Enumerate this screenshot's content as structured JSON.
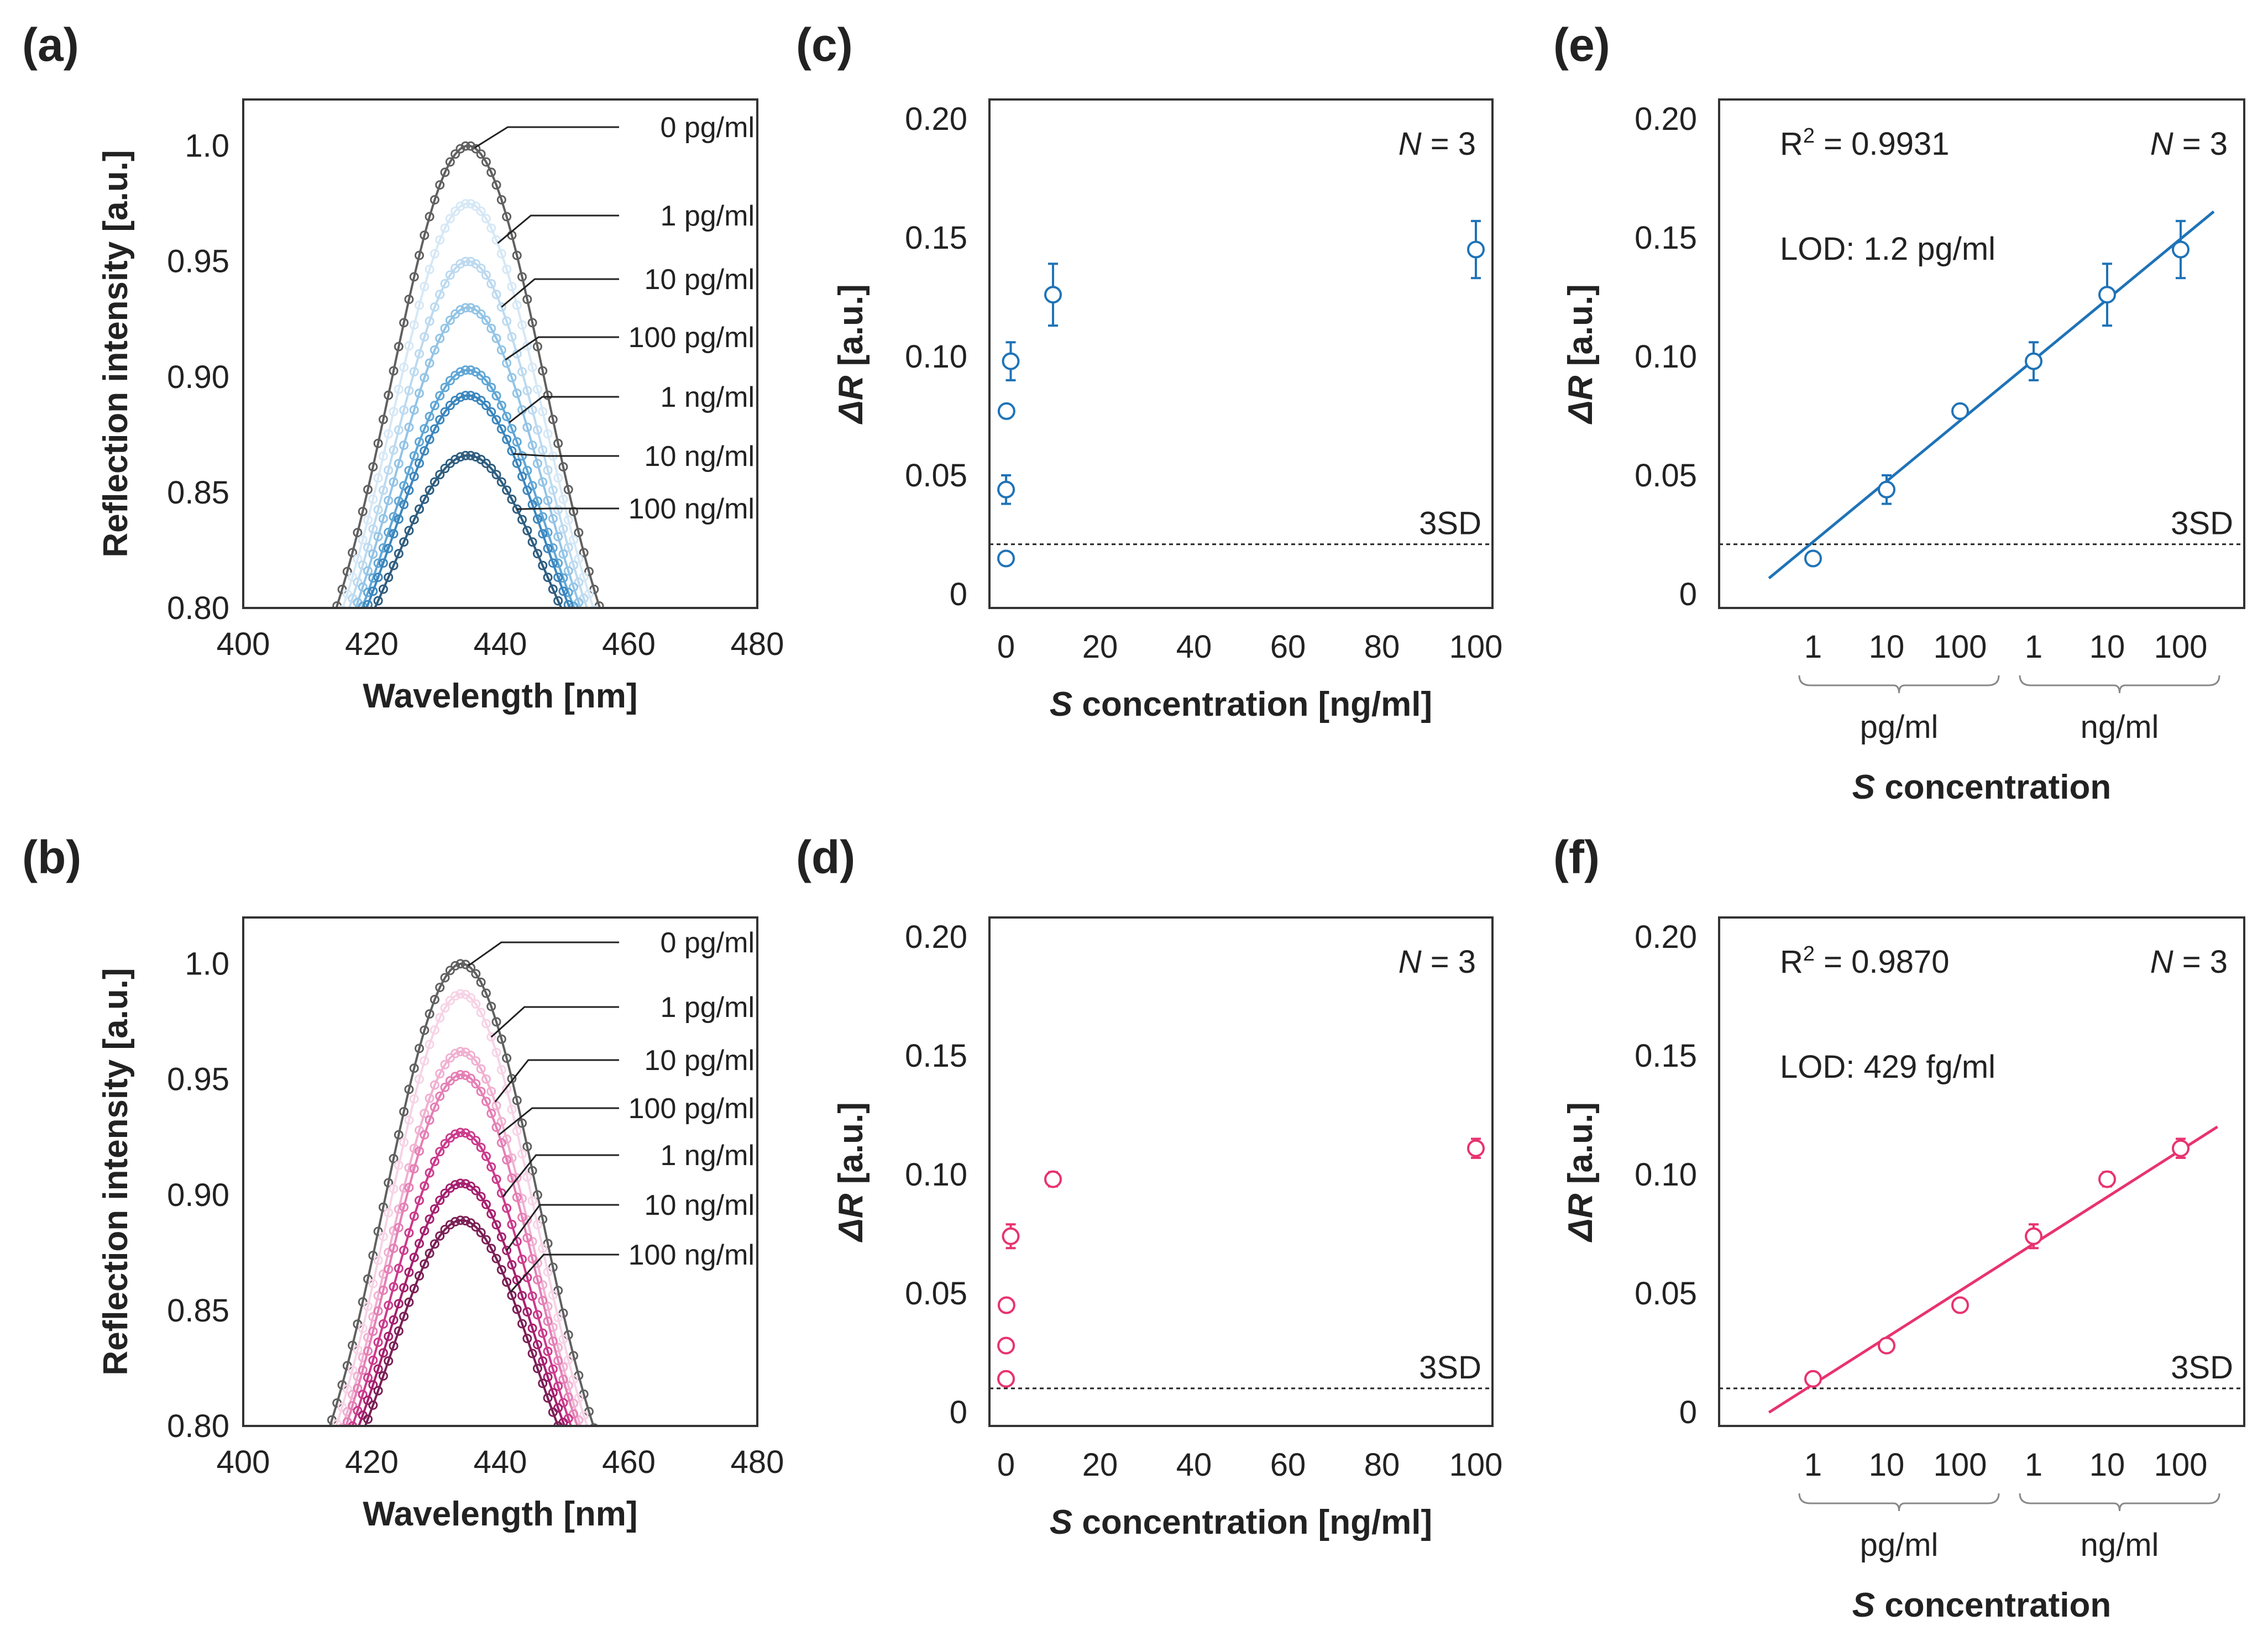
{
  "chart_data": [
    {
      "panel": "(a)",
      "type": "line",
      "xlabel": "Wavelength [nm]",
      "ylabel": "Reflection intensity [a.u.]",
      "xlim": [
        400,
        480
      ],
      "ylim": [
        0.8,
        1.02
      ],
      "xticks": [
        "400",
        "420",
        "440",
        "460",
        "480"
      ],
      "yticks": [
        "0.80",
        "0.85",
        "0.90",
        "0.95",
        "1.0"
      ],
      "series": [
        {
          "name": "0 pg/ml",
          "peak_x": 435,
          "peak_y": 1.0,
          "halfwidth": 20.5,
          "color": "#606060"
        },
        {
          "name": "1 pg/ml",
          "peak_x": 435,
          "peak_y": 0.975,
          "halfwidth": 19.5,
          "color": "#d6e8f6"
        },
        {
          "name": "10 pg/ml",
          "peak_x": 435,
          "peak_y": 0.95,
          "halfwidth": 18.5,
          "color": "#bcdaf0"
        },
        {
          "name": "100 pg/ml",
          "peak_x": 435,
          "peak_y": 0.93,
          "halfwidth": 17.5,
          "color": "#93c4e6"
        },
        {
          "name": "1 ng/ml",
          "peak_x": 435,
          "peak_y": 0.903,
          "halfwidth": 16.5,
          "color": "#5fa6d6"
        },
        {
          "name": "10 ng/ml",
          "peak_x": 435,
          "peak_y": 0.892,
          "halfwidth": 15.8,
          "color": "#3b86bd"
        },
        {
          "name": "100 ng/ml",
          "peak_x": 435,
          "peak_y": 0.866,
          "halfwidth": 14.5,
          "color": "#2e5d7f"
        }
      ]
    },
    {
      "panel": "(b)",
      "type": "line",
      "xlabel": "Wavelength [nm]",
      "ylabel": "Reflection intensity [a.u.]",
      "xlim": [
        400,
        480
      ],
      "ylim": [
        0.8,
        1.02
      ],
      "xticks": [
        "400",
        "420",
        "440",
        "460",
        "480"
      ],
      "yticks": [
        "0.80",
        "0.85",
        "0.90",
        "0.95",
        "1.0"
      ],
      "series": [
        {
          "name": "0 pg/ml",
          "peak_x": 434,
          "peak_y": 1.0,
          "halfwidth": 20.5,
          "color": "#606060"
        },
        {
          "name": "1 pg/ml",
          "peak_x": 434,
          "peak_y": 0.987,
          "halfwidth": 19.5,
          "color": "#f7d3e6"
        },
        {
          "name": "10 pg/ml",
          "peak_x": 434,
          "peak_y": 0.962,
          "halfwidth": 18.5,
          "color": "#f0b0d1"
        },
        {
          "name": "100 pg/ml",
          "peak_x": 434,
          "peak_y": 0.952,
          "halfwidth": 18.0,
          "color": "#e57fb5"
        },
        {
          "name": "1 ng/ml",
          "peak_x": 434,
          "peak_y": 0.927,
          "halfwidth": 17.0,
          "color": "#cc3a8c"
        },
        {
          "name": "10 ng/ml",
          "peak_x": 434,
          "peak_y": 0.905,
          "halfwidth": 16.0,
          "color": "#a51f6e"
        },
        {
          "name": "100 ng/ml",
          "peak_x": 434,
          "peak_y": 0.889,
          "halfwidth": 15.0,
          "color": "#7a1f55"
        }
      ]
    },
    {
      "panel": "(c)",
      "type": "scatter",
      "xlabel_italic": "S",
      "xlabel_rest": " concentration [ng/ml]",
      "ylabel_italic": "ΔR",
      "ylabel_rest": " [a.u.]",
      "xlim": [
        0,
        100
      ],
      "ylim": [
        0,
        0.2
      ],
      "xticks": [
        "0",
        "20",
        "40",
        "60",
        "80",
        "100"
      ],
      "yticks": [
        "0",
        "0.05",
        "0.10",
        "0.15",
        "0.20"
      ],
      "color": "#1f73b7",
      "n_label": "N",
      "n_value": " = 3",
      "threshold": {
        "label": "3SD",
        "y": 0.021
      },
      "x": [
        0.001,
        0.01,
        0.1,
        1,
        10,
        100
      ],
      "y": [
        0.015,
        0.044,
        0.077,
        0.098,
        0.126,
        0.145
      ],
      "err": [
        0.002,
        0.006,
        0.002,
        0.008,
        0.013,
        0.012
      ]
    },
    {
      "panel": "(d)",
      "type": "scatter",
      "xlabel_italic": "S",
      "xlabel_rest": " concentration [ng/ml]",
      "ylabel_italic": "ΔR",
      "ylabel_rest": " [a.u.]",
      "xlim": [
        0,
        100
      ],
      "ylim": [
        0,
        0.2
      ],
      "xticks": [
        "0",
        "20",
        "40",
        "60",
        "80",
        "100"
      ],
      "yticks": [
        "0",
        "0.05",
        "0.10",
        "0.15",
        "0.20"
      ],
      "color": "#e8336f",
      "n_label": "N",
      "n_value": " = 3",
      "threshold": {
        "label": "3SD",
        "y": 0.01
      },
      "x": [
        0.001,
        0.01,
        0.1,
        1,
        10,
        100
      ],
      "y": [
        0.014,
        0.028,
        0.045,
        0.074,
        0.098,
        0.111
      ],
      "err": [
        0.002,
        0.002,
        0.002,
        0.005,
        0.003,
        0.004
      ]
    },
    {
      "panel": "(e)",
      "type": "scatter",
      "ylabel_italic": "ΔR",
      "ylabel_rest": " [a.u.]",
      "xlabel_italic": "S",
      "xlabel_rest": " concentration",
      "ylim": [
        0,
        0.2
      ],
      "yticks": [
        "0",
        "0.05",
        "0.10",
        "0.15",
        "0.20"
      ],
      "xticks": [
        "1",
        "10",
        "100",
        "1",
        "10",
        "100"
      ],
      "groups": [
        "pg/ml",
        "ng/ml"
      ],
      "color": "#1f73b7",
      "r2_prefix": "R",
      "r2_sup": "2",
      "r2_value": " = 0.9931",
      "lod": "LOD: 1.2 pg/ml",
      "n_label": "N",
      "n_value": " = 3",
      "threshold": {
        "label": "3SD",
        "y": 0.021
      },
      "x_index": [
        0,
        1,
        2,
        3,
        4,
        5
      ],
      "y": [
        0.015,
        0.044,
        0.077,
        0.098,
        0.126,
        0.145
      ],
      "err": [
        0.002,
        0.006,
        0.002,
        0.008,
        0.013,
        0.012
      ],
      "fit_range": [
        -0.6,
        5.45
      ],
      "fit": {
        "slope": 0.0255,
        "intercept": 0.022
      }
    },
    {
      "panel": "(f)",
      "type": "scatter",
      "ylabel_italic": "ΔR",
      "ylabel_rest": " [a.u.]",
      "xlabel_italic": "S",
      "xlabel_rest": " concentration",
      "ylim": [
        0,
        0.2
      ],
      "yticks": [
        "0",
        "0.05",
        "0.10",
        "0.15",
        "0.20"
      ],
      "xticks": [
        "1",
        "10",
        "100",
        "1",
        "10",
        "100"
      ],
      "groups": [
        "pg/ml",
        "ng/ml"
      ],
      "color": "#e8336f",
      "r2_prefix": "R",
      "r2_sup": "2",
      "r2_value": " = 0.9870",
      "lod": "LOD: 429 fg/ml",
      "n_label": "N",
      "n_value": " = 3",
      "threshold": {
        "label": "3SD",
        "y": 0.01
      },
      "x_index": [
        0,
        1,
        2,
        3,
        4,
        5
      ],
      "y": [
        0.014,
        0.028,
        0.045,
        0.074,
        0.098,
        0.111
      ],
      "err": [
        0.002,
        0.002,
        0.002,
        0.005,
        0.003,
        0.004
      ],
      "fit_range": [
        -0.6,
        5.5
      ],
      "fit": {
        "slope": 0.0197,
        "intercept": 0.0117
      }
    }
  ]
}
